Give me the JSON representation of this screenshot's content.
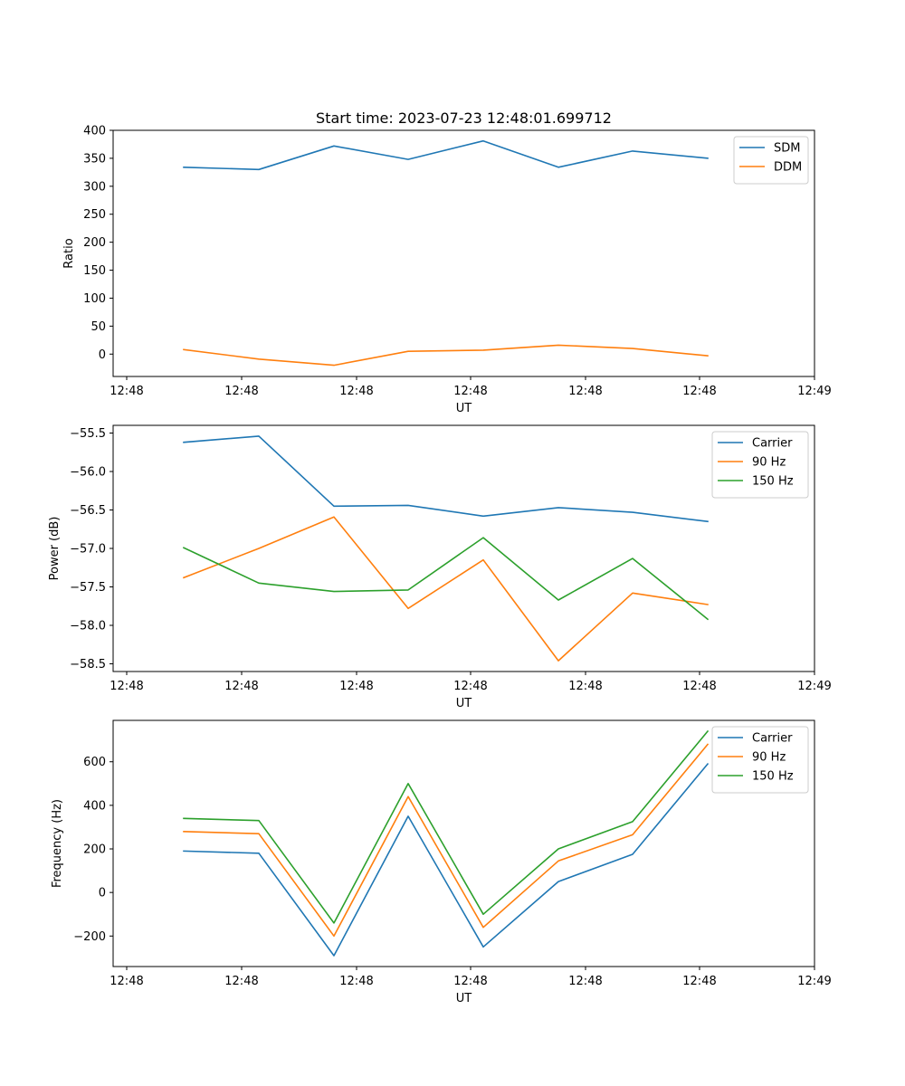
{
  "figure": {
    "title": "Start time: 2023-07-23 12:48:01.699712"
  },
  "chart_data": [
    {
      "type": "line",
      "title": "Start time: 2023-07-23 12:48:01.699712",
      "xlabel": "UT",
      "ylabel": "Ratio",
      "x_tick_labels": [
        "12:48",
        "12:48",
        "12:48",
        "12:48",
        "12:48",
        "12:48",
        "12:48"
      ],
      "x_tick_end_label": "12:49",
      "ylim": [
        -40,
        400
      ],
      "yticks": [
        0,
        50,
        100,
        150,
        200,
        250,
        300,
        350,
        400
      ],
      "ytick_labels": [
        "0",
        "50",
        "100",
        "150",
        "200",
        "250",
        "300",
        "350",
        "400"
      ],
      "legend_position": "top-right",
      "series": [
        {
          "name": "SDM",
          "color": "#1f77b4",
          "values": [
            334,
            330,
            372,
            348,
            381,
            334,
            363,
            350
          ]
        },
        {
          "name": "DDM",
          "color": "#ff7f0e",
          "values": [
            8,
            -9,
            -20,
            5,
            7,
            16,
            10,
            -3
          ]
        }
      ]
    },
    {
      "type": "line",
      "title": "",
      "xlabel": "UT",
      "ylabel": "Power (dB)",
      "x_tick_labels": [
        "12:48",
        "12:48",
        "12:48",
        "12:48",
        "12:48",
        "12:48",
        "12:48"
      ],
      "x_tick_end_label": "12:49",
      "ylim": [
        -58.6,
        -55.4
      ],
      "yticks": [
        -58.5,
        -58.0,
        -57.5,
        -57.0,
        -56.5,
        -56.0,
        -55.5
      ],
      "ytick_labels": [
        "−58.5",
        "−58.0",
        "−57.5",
        "−57.0",
        "−56.5",
        "−56.0",
        "−55.5"
      ],
      "legend_position": "top-right",
      "series": [
        {
          "name": "Carrier",
          "color": "#1f77b4",
          "values": [
            -55.62,
            -55.54,
            -56.45,
            -56.44,
            -56.58,
            -56.47,
            -56.53,
            -56.65
          ]
        },
        {
          "name": "90 Hz",
          "color": "#ff7f0e",
          "values": [
            -57.38,
            -57.0,
            -56.59,
            -57.78,
            -57.15,
            -58.46,
            -57.58,
            -57.73
          ]
        },
        {
          "name": "150 Hz",
          "color": "#2ca02c",
          "values": [
            -56.99,
            -57.45,
            -57.56,
            -57.54,
            -56.86,
            -57.67,
            -57.13,
            -57.92
          ]
        }
      ]
    },
    {
      "type": "line",
      "title": "",
      "xlabel": "UT",
      "ylabel": "Frequency (Hz)",
      "x_tick_labels": [
        "12:48",
        "12:48",
        "12:48",
        "12:48",
        "12:48",
        "12:48",
        "12:48"
      ],
      "x_tick_end_label": "12:49",
      "ylim": [
        -340,
        790
      ],
      "yticks": [
        -200,
        0,
        200,
        400,
        600
      ],
      "ytick_labels": [
        "−200",
        "0",
        "200",
        "400",
        "600"
      ],
      "legend_position": "top-right",
      "series": [
        {
          "name": "Carrier",
          "color": "#1f77b4",
          "values": [
            190,
            180,
            -290,
            350,
            -250,
            50,
            175,
            590
          ]
        },
        {
          "name": "90 Hz",
          "color": "#ff7f0e",
          "values": [
            280,
            270,
            -200,
            440,
            -160,
            145,
            265,
            680
          ]
        },
        {
          "name": "150 Hz",
          "color": "#2ca02c",
          "values": [
            340,
            330,
            -140,
            500,
            -100,
            200,
            325,
            740
          ]
        }
      ]
    }
  ]
}
